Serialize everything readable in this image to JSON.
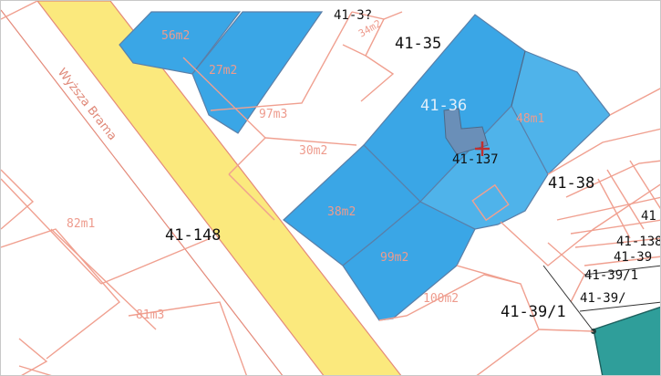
{
  "map": {
    "street_name": "Wyższa Brama",
    "parcel_numbers": {
      "top_cut": "41-3?",
      "p35": "41-35",
      "p36": "41-36",
      "p37": "41-137",
      "p38": "41-38",
      "p148": "41-148",
      "p39_1": "41-39/1",
      "p39_a": "41-39/",
      "p39_b": "41-39/1",
      "p39_c": "41-39",
      "p138": "41-138",
      "p41_edge": "41"
    },
    "areas": {
      "a56": "56m2",
      "a27": "27m2",
      "a34": "34m2",
      "a97": "97m3",
      "a30": "30m2",
      "a48": "48m1",
      "a82": "82m1",
      "a38": "38m2",
      "a99": "99m2",
      "a100": "100m2",
      "a81": "81m3"
    },
    "colors": {
      "building_blue": "#3aa6e6",
      "road_yellow": "#fbe97d",
      "parcel_line": "#f0a090",
      "selection_marker": "#6a8fb8",
      "teal_area": "#2f9e9a"
    },
    "icons": [
      "building-marker-icon",
      "crosshair-icon"
    ]
  }
}
